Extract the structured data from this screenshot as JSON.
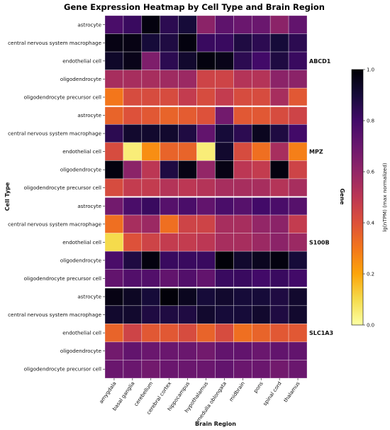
{
  "chart_data": {
    "type": "heatmap",
    "title": "Gene Expression Heatmap by Cell Type and Brain Region",
    "xlabel": "Brain Region",
    "ylabel": "Cell Type",
    "right_label": "Gene",
    "colorbar": {
      "label": "lg(nTPM) (max normalized)",
      "range": [
        0,
        1
      ],
      "ticks": [
        "0.0",
        "0.2",
        "0.4",
        "0.6",
        "0.8",
        "1.0"
      ],
      "colormap": "inferno_r"
    },
    "x": [
      "amygdala",
      "basal ganglia",
      "cerebellum",
      "cerebral cortex",
      "hippocampus",
      "hypothalamus",
      "medulla oblongata",
      "midbrain",
      "pons",
      "spinal cord",
      "thalamus"
    ],
    "genes": [
      {
        "name": "ABCD1",
        "rows": [
          {
            "cell_type": "astrocyte",
            "values": [
              0.78,
              0.82,
              0.98,
              0.85,
              0.9,
              0.62,
              0.73,
              0.7,
              0.7,
              0.62,
              0.72
            ]
          },
          {
            "cell_type": "central nervous system macrophage",
            "values": [
              0.97,
              0.97,
              0.9,
              0.88,
              0.98,
              0.82,
              0.82,
              0.88,
              0.85,
              0.9,
              0.85
            ]
          },
          {
            "cell_type": "endothelial cell",
            "values": [
              0.93,
              0.96,
              0.65,
              0.85,
              0.92,
              0.98,
              0.96,
              0.85,
              0.8,
              0.88,
              0.82
            ]
          },
          {
            "cell_type": "oligodendrocyte",
            "values": [
              0.55,
              0.55,
              0.55,
              0.57,
              0.58,
              0.45,
              0.45,
              0.52,
              0.52,
              0.62,
              0.62
            ]
          },
          {
            "cell_type": "oligodendrocyte precursor cell",
            "values": [
              0.3,
              0.42,
              0.42,
              0.42,
              0.48,
              0.42,
              0.48,
              0.42,
              0.42,
              0.55,
              0.38
            ]
          }
        ]
      },
      {
        "name": "MPZ",
        "rows": [
          {
            "cell_type": "astrocyte",
            "values": [
              0.35,
              0.4,
              0.38,
              0.35,
              0.37,
              0.4,
              0.68,
              0.38,
              0.38,
              0.42,
              0.45
            ]
          },
          {
            "cell_type": "central nervous system macrophage",
            "values": [
              0.85,
              0.92,
              0.92,
              0.92,
              0.88,
              0.72,
              0.9,
              0.85,
              0.95,
              0.88,
              0.8
            ]
          },
          {
            "cell_type": "endothelial cell",
            "values": [
              0.42,
              0.05,
              0.25,
              0.35,
              0.35,
              0.05,
              0.92,
              0.42,
              0.32,
              0.55,
              0.28
            ]
          },
          {
            "cell_type": "oligodendrocyte",
            "values": [
              0.98,
              0.62,
              0.5,
              0.88,
              0.97,
              0.6,
              0.97,
              0.5,
              0.48,
              0.98,
              0.45
            ]
          },
          {
            "cell_type": "oligodendrocyte precursor cell",
            "values": [
              0.42,
              0.48,
              0.48,
              0.52,
              0.5,
              0.52,
              0.55,
              0.55,
              0.55,
              0.52,
              0.55
            ]
          }
        ]
      },
      {
        "name": "S100B",
        "rows": [
          {
            "cell_type": "astrocyte",
            "values": [
              0.68,
              0.78,
              0.82,
              0.75,
              0.78,
              0.72,
              0.78,
              0.75,
              0.8,
              0.78,
              0.75
            ]
          },
          {
            "cell_type": "central nervous system macrophage",
            "values": [
              0.32,
              0.55,
              0.58,
              0.32,
              0.45,
              0.45,
              0.55,
              0.55,
              0.6,
              0.62,
              0.48
            ]
          },
          {
            "cell_type": "endothelial cell",
            "values": [
              0.1,
              0.4,
              0.45,
              0.48,
              0.48,
              0.5,
              0.55,
              0.55,
              0.58,
              0.62,
              0.58
            ]
          },
          {
            "cell_type": "oligodendrocyte",
            "values": [
              0.78,
              0.88,
              0.98,
              0.82,
              0.82,
              0.82,
              0.99,
              0.92,
              0.95,
              0.98,
              0.9
            ]
          },
          {
            "cell_type": "oligodendrocyte precursor cell",
            "values": [
              0.72,
              0.76,
              0.76,
              0.72,
              0.76,
              0.72,
              0.82,
              0.82,
              0.8,
              0.82,
              0.8
            ]
          }
        ]
      },
      {
        "name": "SLC1A3",
        "rows": [
          {
            "cell_type": "astrocyte",
            "values": [
              0.97,
              0.94,
              0.9,
              0.99,
              0.95,
              0.9,
              0.92,
              0.9,
              0.9,
              0.88,
              0.92
            ]
          },
          {
            "cell_type": "central nervous system macrophage",
            "values": [
              0.92,
              0.92,
              0.88,
              0.88,
              0.88,
              0.92,
              0.9,
              0.9,
              0.92,
              0.88,
              0.92
            ]
          },
          {
            "cell_type": "endothelial cell",
            "values": [
              0.35,
              0.45,
              0.38,
              0.38,
              0.42,
              0.35,
              0.42,
              0.32,
              0.35,
              0.38,
              0.38
            ]
          },
          {
            "cell_type": "oligodendrocyte",
            "values": [
              0.68,
              0.72,
              0.7,
              0.7,
              0.7,
              0.68,
              0.72,
              0.72,
              0.7,
              0.72,
              0.72
            ]
          },
          {
            "cell_type": "oligodendrocyte precursor cell",
            "values": [
              0.7,
              0.7,
              0.68,
              0.7,
              0.7,
              0.7,
              0.72,
              0.7,
              0.7,
              0.68,
              0.7
            ]
          }
        ]
      }
    ]
  }
}
